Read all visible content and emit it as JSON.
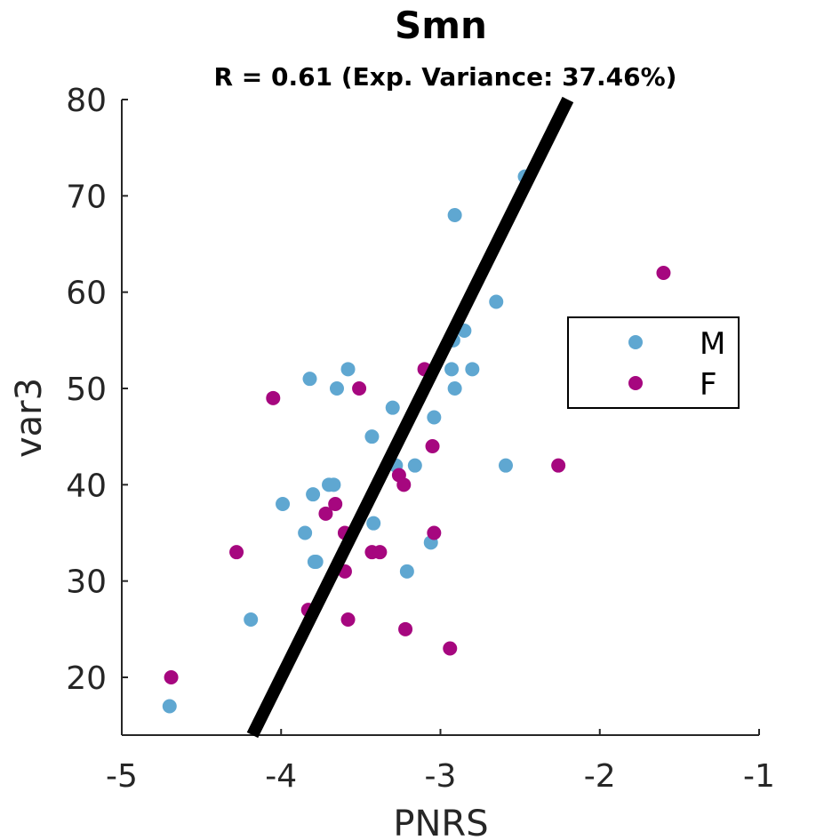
{
  "chart_data": {
    "type": "scatter",
    "title": "Smn",
    "subtitle": "R = 0.61 (Exp. Variance: 37.46%)",
    "xlabel": "PNRS",
    "ylabel": "var3",
    "xlim": [
      -5,
      -1
    ],
    "ylim": [
      14,
      80
    ],
    "xticks": [
      -5,
      -4,
      -3,
      -2,
      -1
    ],
    "xtick_labels": [
      "-5",
      "-4",
      "-3",
      "-2",
      "-1"
    ],
    "yticks": [
      20,
      30,
      40,
      50,
      60,
      70,
      80
    ],
    "ytick_labels": [
      "20",
      "30",
      "40",
      "50",
      "60",
      "70",
      "80"
    ],
    "grid": false,
    "legend_position": "right",
    "series": [
      {
        "name": "M",
        "color": "#5fa7d1",
        "points": [
          [
            -4.7,
            17
          ],
          [
            -4.19,
            26
          ],
          [
            -3.99,
            38
          ],
          [
            -3.85,
            35
          ],
          [
            -3.82,
            51
          ],
          [
            -3.8,
            39
          ],
          [
            -3.79,
            32
          ],
          [
            -3.78,
            32
          ],
          [
            -3.7,
            40
          ],
          [
            -3.67,
            40
          ],
          [
            -3.65,
            50
          ],
          [
            -3.58,
            52
          ],
          [
            -3.43,
            45
          ],
          [
            -3.42,
            36
          ],
          [
            -3.3,
            48
          ],
          [
            -3.28,
            42
          ],
          [
            -3.21,
            31
          ],
          [
            -3.16,
            42
          ],
          [
            -3.06,
            34
          ],
          [
            -3.04,
            47
          ],
          [
            -2.93,
            52
          ],
          [
            -2.92,
            55
          ],
          [
            -2.91,
            50
          ],
          [
            -2.91,
            68
          ],
          [
            -2.85,
            56
          ],
          [
            -2.8,
            52
          ],
          [
            -2.65,
            59
          ],
          [
            -2.59,
            42
          ],
          [
            -2.47,
            72
          ]
        ]
      },
      {
        "name": "F",
        "color": "#a6077f",
        "points": [
          [
            -4.69,
            20
          ],
          [
            -4.28,
            33
          ],
          [
            -4.05,
            49
          ],
          [
            -3.83,
            27
          ],
          [
            -3.72,
            37
          ],
          [
            -3.66,
            38
          ],
          [
            -3.6,
            35
          ],
          [
            -3.6,
            31
          ],
          [
            -3.58,
            26
          ],
          [
            -3.51,
            50
          ],
          [
            -3.43,
            33
          ],
          [
            -3.38,
            33
          ],
          [
            -3.26,
            41
          ],
          [
            -3.23,
            40
          ],
          [
            -3.22,
            25
          ],
          [
            -3.1,
            52
          ],
          [
            -3.05,
            44
          ],
          [
            -3.04,
            35
          ],
          [
            -2.94,
            23
          ],
          [
            -2.26,
            42
          ],
          [
            -1.6,
            62
          ]
        ]
      }
    ],
    "fit_line": {
      "color": "#000000",
      "points": [
        [
          -4.18,
          14
        ],
        [
          -2.2,
          80
        ]
      ]
    }
  }
}
